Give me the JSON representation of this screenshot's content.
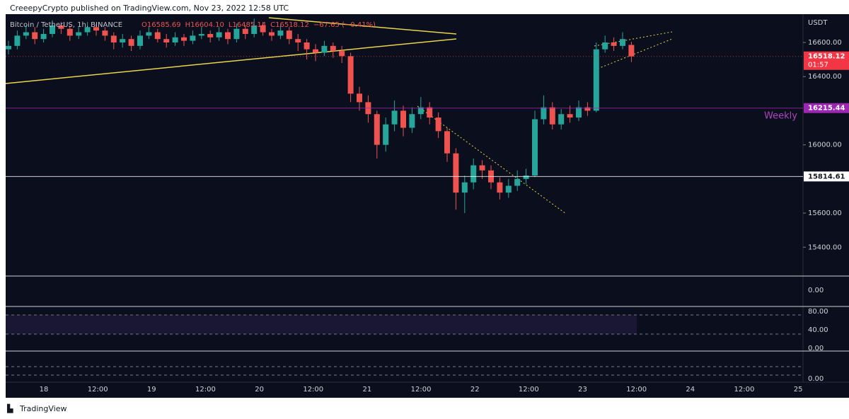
{
  "header": {
    "publisher": "CreeepyCrypto published on TradingView.com, Nov 23, 2022 12:58 UTC"
  },
  "chart_data": {
    "type": "candlestick",
    "title": "Bitcoin / TetherUS, 1h, BINANCE",
    "legend_values": [
      "O16585.69",
      "H16604.10",
      "L16485.14",
      "C16518.12",
      "−67.65 (−0.41%)"
    ],
    "currency": "USDT",
    "up_color": "#26a69a",
    "down_color": "#ef5350",
    "ylim": [
      15231,
      16766
    ],
    "yticks": [
      {
        "value": 16600,
        "label": "16600.00"
      },
      {
        "value": 16400,
        "label": "16400.00"
      },
      {
        "value": 16000,
        "label": "16000.00"
      },
      {
        "value": 15600,
        "label": "15600.00"
      },
      {
        "value": 15400,
        "label": "15400.00"
      }
    ],
    "price_markers": [
      {
        "value": 16518.12,
        "color": "#f23645",
        "countdown": "01:57"
      },
      {
        "value": 16215.44,
        "color": "#9c27b0"
      },
      {
        "value": 15814.61,
        "color": "#ffffff"
      }
    ],
    "annotation": "Weekly",
    "time_labels": [
      "18",
      "12:00",
      "19",
      "12:00",
      "20",
      "12:00",
      "21",
      "12:00",
      "22",
      "12:00",
      "23",
      "12:00",
      "24",
      "12:00",
      "25"
    ],
    "ohlc": [
      [
        16560,
        16610,
        16530,
        16580
      ],
      [
        16580,
        16670,
        16560,
        16640
      ],
      [
        16640,
        16700,
        16620,
        16660
      ],
      [
        16660,
        16690,
        16590,
        16620
      ],
      [
        16620,
        16680,
        16600,
        16650
      ],
      [
        16650,
        16730,
        16630,
        16700
      ],
      [
        16700,
        16720,
        16650,
        16680
      ],
      [
        16680,
        16700,
        16610,
        16640
      ],
      [
        16640,
        16690,
        16620,
        16660
      ],
      [
        16660,
        16720,
        16640,
        16690
      ],
      [
        16690,
        16710,
        16640,
        16670
      ],
      [
        16670,
        16690,
        16610,
        16640
      ],
      [
        16640,
        16660,
        16560,
        16600
      ],
      [
        16600,
        16650,
        16570,
        16620
      ],
      [
        16620,
        16640,
        16550,
        16580
      ],
      [
        16580,
        16670,
        16560,
        16640
      ],
      [
        16640,
        16690,
        16620,
        16660
      ],
      [
        16660,
        16680,
        16600,
        16620
      ],
      [
        16620,
        16650,
        16570,
        16600
      ],
      [
        16600,
        16660,
        16580,
        16630
      ],
      [
        16630,
        16650,
        16580,
        16610
      ],
      [
        16610,
        16670,
        16590,
        16640
      ],
      [
        16640,
        16690,
        16620,
        16650
      ],
      [
        16650,
        16670,
        16600,
        16630
      ],
      [
        16630,
        16690,
        16610,
        16660
      ],
      [
        16660,
        16680,
        16590,
        16620
      ],
      [
        16620,
        16710,
        16600,
        16680
      ],
      [
        16680,
        16700,
        16620,
        16650
      ],
      [
        16650,
        16740,
        16630,
        16700
      ],
      [
        16700,
        16720,
        16640,
        16660
      ],
      [
        16660,
        16680,
        16610,
        16640
      ],
      [
        16640,
        16700,
        16620,
        16670
      ],
      [
        16670,
        16690,
        16590,
        16620
      ],
      [
        16620,
        16650,
        16550,
        16600
      ],
      [
        16600,
        16620,
        16500,
        16560
      ],
      [
        16560,
        16590,
        16490,
        16540
      ],
      [
        16540,
        16610,
        16520,
        16580
      ],
      [
        16580,
        16600,
        16510,
        16550
      ],
      [
        16550,
        16580,
        16480,
        16520
      ],
      [
        16520,
        16540,
        16250,
        16300
      ],
      [
        16300,
        16340,
        16200,
        16250
      ],
      [
        16250,
        16290,
        16130,
        16180
      ],
      [
        16180,
        16200,
        15920,
        16000
      ],
      [
        16000,
        16160,
        15960,
        16120
      ],
      [
        16120,
        16260,
        16080,
        16200
      ],
      [
        16200,
        16230,
        16050,
        16100
      ],
      [
        16100,
        16220,
        16070,
        16180
      ],
      [
        16180,
        16280,
        16150,
        16220
      ],
      [
        16220,
        16250,
        16120,
        16160
      ],
      [
        16160,
        16190,
        16040,
        16080
      ],
      [
        16080,
        16100,
        15900,
        15950
      ],
      [
        15950,
        15980,
        15620,
        15720
      ],
      [
        15720,
        15820,
        15600,
        15780
      ],
      [
        15780,
        15920,
        15740,
        15880
      ],
      [
        15880,
        15910,
        15800,
        15850
      ],
      [
        15850,
        15880,
        15740,
        15780
      ],
      [
        15780,
        15810,
        15680,
        15720
      ],
      [
        15720,
        15800,
        15690,
        15760
      ],
      [
        15760,
        15850,
        15730,
        15800
      ],
      [
        15800,
        15860,
        15770,
        15820
      ],
      [
        15820,
        16200,
        15810,
        16150
      ],
      [
        16150,
        16290,
        16120,
        16220
      ],
      [
        16220,
        16250,
        16090,
        16120
      ],
      [
        16120,
        16210,
        16090,
        16180
      ],
      [
        16180,
        16230,
        16130,
        16160
      ],
      [
        16160,
        16260,
        16140,
        16220
      ],
      [
        16220,
        16250,
        16170,
        16200
      ],
      [
        16200,
        16600,
        16190,
        16560
      ],
      [
        16560,
        16640,
        16540,
        16600
      ],
      [
        16600,
        16630,
        16550,
        16580
      ],
      [
        16580,
        16660,
        16560,
        16620
      ],
      [
        16585.69,
        16604.1,
        16485.14,
        16518.12
      ]
    ],
    "indicator_labels": [
      "0.00",
      "80.00",
      "40.00",
      "0.00",
      "0.00"
    ]
  },
  "footer": {
    "brand": "TradingView"
  }
}
